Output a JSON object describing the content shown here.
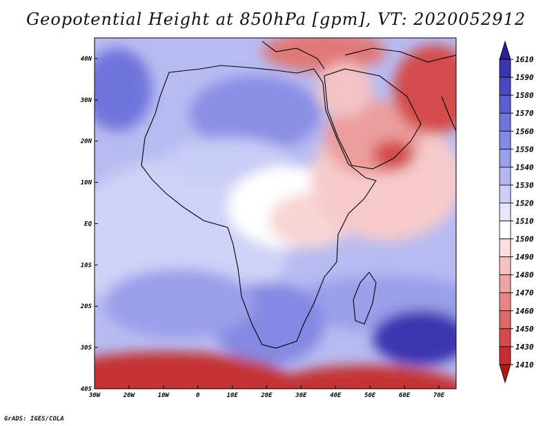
{
  "title": "Geopotential Height at 850hPa [gpm], VT: 2020052912",
  "footer": "GrADS: IGES/COLA",
  "map": {
    "lon_range": [
      -30,
      75
    ],
    "lat_range": [
      -40,
      45
    ],
    "lon_ticks": [
      {
        "lon": -30,
        "label": "30W"
      },
      {
        "lon": -20,
        "label": "20W"
      },
      {
        "lon": -10,
        "label": "10W"
      },
      {
        "lon": 0,
        "label": "0"
      },
      {
        "lon": 10,
        "label": "10E"
      },
      {
        "lon": 20,
        "label": "20E"
      },
      {
        "lon": 30,
        "label": "30E"
      },
      {
        "lon": 40,
        "label": "40E"
      },
      {
        "lon": 50,
        "label": "50E"
      },
      {
        "lon": 60,
        "label": "60E"
      },
      {
        "lon": 70,
        "label": "70E"
      }
    ],
    "lat_ticks": [
      {
        "lat": 40,
        "label": "40N"
      },
      {
        "lat": 30,
        "label": "30N"
      },
      {
        "lat": 20,
        "label": "20N"
      },
      {
        "lat": 10,
        "label": "10N"
      },
      {
        "lat": 0,
        "label": "EQ"
      },
      {
        "lat": -10,
        "label": "10S"
      },
      {
        "lat": -20,
        "label": "20S"
      },
      {
        "lat": -30,
        "label": "30S"
      },
      {
        "lat": -40,
        "label": "40S"
      }
    ]
  },
  "colorbar": {
    "levels": [
      "1610",
      "1590",
      "1580",
      "1570",
      "1560",
      "1550",
      "1540",
      "1530",
      "1520",
      "1510",
      "1500",
      "1490",
      "1480",
      "1470",
      "1460",
      "1450",
      "1430",
      "1410"
    ],
    "colors": [
      "#2c1f9c",
      "#3a34b0",
      "#4a49c3",
      "#5c5fd0",
      "#6f74db",
      "#8489e3",
      "#9a9fea",
      "#b3b6f0",
      "#ccceF6",
      "#e6e7fb",
      "#ffffff",
      "#f9dcdc",
      "#f4c0c0",
      "#eea3a3",
      "#e78585",
      "#df6868",
      "#d44b4b",
      "#c43030",
      "#b01818"
    ]
  }
}
